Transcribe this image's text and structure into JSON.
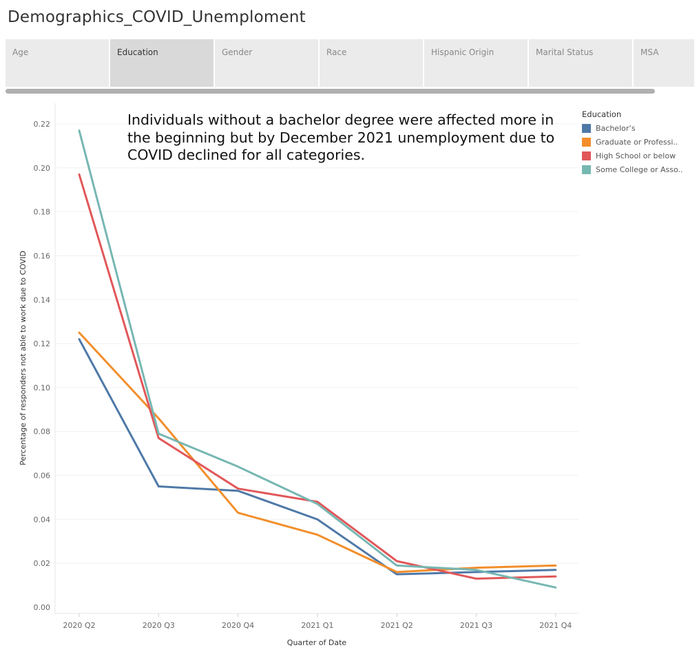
{
  "page": {
    "title": "Demographics_COVID_Unemploment"
  },
  "tabs": [
    {
      "label": "Age",
      "active": false
    },
    {
      "label": "Education",
      "active": true
    },
    {
      "label": "Gender",
      "active": false
    },
    {
      "label": "Race",
      "active": false
    },
    {
      "label": "Hispanic Origin",
      "active": false
    },
    {
      "label": "Marital Status",
      "active": false
    },
    {
      "label": "MSA",
      "active": false
    }
  ],
  "annotation": "Individuals without a bachelor degree were affected more in the beginning but by December 2021 unemployment due to COVID declined for all categories.",
  "legend": {
    "title": "Education",
    "items": [
      {
        "label": "Bachelor’s",
        "color": "#4e79a7"
      },
      {
        "label": "Graduate or Professi..",
        "color": "#f28e2b"
      },
      {
        "label": "High School or below",
        "color": "#e15759"
      },
      {
        "label": "Some College or Asso..",
        "color": "#76b7b2"
      }
    ]
  },
  "chart_data": {
    "type": "line",
    "title": "",
    "xlabel": "Quarter of Date",
    "ylabel": "Percentage of responders not able to work due to COVID",
    "x": [
      "2020 Q2",
      "2020 Q3",
      "2020 Q4",
      "2021 Q1",
      "2021 Q2",
      "2021 Q3",
      "2021 Q4"
    ],
    "ylim": [
      0,
      0.225
    ],
    "yticks": [
      "0.00",
      "0.02",
      "0.04",
      "0.06",
      "0.08",
      "0.10",
      "0.12",
      "0.14",
      "0.16",
      "0.18",
      "0.20",
      "0.22"
    ],
    "grid": true,
    "legend_position": "right",
    "series": [
      {
        "name": "Bachelor’s",
        "color": "#4e79a7",
        "values": [
          0.122,
          0.055,
          0.053,
          0.04,
          0.015,
          0.016,
          0.017
        ]
      },
      {
        "name": "Graduate or Professi..",
        "color": "#f28e2b",
        "values": [
          0.125,
          0.086,
          0.043,
          0.033,
          0.016,
          0.018,
          0.019
        ]
      },
      {
        "name": "High School or below",
        "color": "#e15759",
        "values": [
          0.197,
          0.077,
          0.054,
          0.048,
          0.021,
          0.013,
          0.014
        ]
      },
      {
        "name": "Some College or Asso..",
        "color": "#76b7b2",
        "values": [
          0.217,
          0.079,
          0.064,
          0.047,
          0.019,
          0.017,
          0.009
        ]
      }
    ]
  }
}
